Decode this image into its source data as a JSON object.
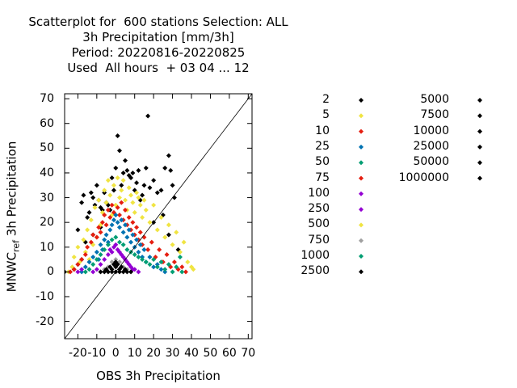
{
  "chart_data": {
    "type": "scatter",
    "title_lines": [
      "Scatterplot for  600 stations Selection: ALL",
      "3h Precipitation [mm/3h]",
      "Period: 20220816-20220825",
      "Used  All hours  + 03 04 ... 12"
    ],
    "xlabel": "OBS 3h Precipitation",
    "ylabel_main": "MNWC",
    "ylabel_sub": "ref",
    "ylabel_tail": " 3h Precipitation",
    "xlim": [
      -27,
      72
    ],
    "ylim": [
      -27,
      72
    ],
    "x_ticks": [
      "-20",
      "-10",
      "0",
      "10",
      "20",
      "30",
      "40",
      "50",
      "60",
      "70"
    ],
    "x_tick_values": [
      -20,
      -10,
      0,
      10,
      20,
      30,
      40,
      50,
      60,
      70
    ],
    "y_ticks": [
      "70",
      "60",
      "50",
      "40",
      "30",
      "20",
      "10",
      "0",
      "-10",
      "-20"
    ],
    "y_tick_values": [
      70,
      60,
      50,
      40,
      30,
      20,
      10,
      0,
      -10,
      -20
    ],
    "diagonal": true,
    "legend": [
      {
        "label": "2",
        "color": "#000000"
      },
      {
        "label": "5",
        "color": "#f0e442"
      },
      {
        "label": "10",
        "color": "#e51e10"
      },
      {
        "label": "25",
        "color": "#0072b2"
      },
      {
        "label": "50",
        "color": "#009e73"
      },
      {
        "label": "75",
        "color": "#e51e10"
      },
      {
        "label": "100",
        "color": "#9400d3"
      },
      {
        "label": "250",
        "color": "#9400d3"
      },
      {
        "label": "500",
        "color": "#f0e442"
      },
      {
        "label": "750",
        "color": "#a0a0a0"
      },
      {
        "label": "1000",
        "color": "#009e73"
      },
      {
        "label": "2500",
        "color": "#000000"
      },
      {
        "label": "5000",
        "color": "#000000"
      },
      {
        "label": "7500",
        "color": "#000000"
      },
      {
        "label": "10000",
        "color": "#000000"
      },
      {
        "label": "25000",
        "color": "#000000"
      },
      {
        "label": "50000",
        "color": "#000000"
      },
      {
        "label": "1000000",
        "color": "#000000"
      }
    ],
    "series": [
      {
        "name": "2",
        "color": "#000000",
        "points": [
          [
            -27,
            0
          ],
          [
            -22,
            1
          ],
          [
            -20,
            17
          ],
          [
            -18,
            28
          ],
          [
            -17,
            31
          ],
          [
            -15,
            22
          ],
          [
            -14,
            24
          ],
          [
            -13,
            32
          ],
          [
            -12,
            30
          ],
          [
            -11,
            27
          ],
          [
            -10,
            35
          ],
          [
            -9,
            29
          ],
          [
            -8,
            26
          ],
          [
            -7,
            25
          ],
          [
            -6,
            32
          ],
          [
            -5,
            28
          ],
          [
            -4,
            27
          ],
          [
            -3,
            25
          ],
          [
            -2,
            38
          ],
          [
            -1,
            33
          ],
          [
            0,
            42
          ],
          [
            1,
            55
          ],
          [
            2,
            49
          ],
          [
            3,
            35
          ],
          [
            4,
            40
          ],
          [
            5,
            45
          ],
          [
            6,
            41
          ],
          [
            7,
            39
          ],
          [
            8,
            38
          ],
          [
            9,
            40
          ],
          [
            10,
            33
          ],
          [
            11,
            36
          ],
          [
            12,
            41
          ],
          [
            13,
            29
          ],
          [
            14,
            31
          ],
          [
            15,
            35
          ],
          [
            16,
            42
          ],
          [
            17,
            63
          ],
          [
            18,
            34
          ],
          [
            20,
            37
          ],
          [
            22,
            32
          ],
          [
            24,
            33
          ],
          [
            26,
            42
          ],
          [
            28,
            47
          ],
          [
            29,
            41
          ],
          [
            30,
            35
          ],
          [
            31,
            30
          ],
          [
            20,
            20
          ],
          [
            -12,
            15
          ],
          [
            -16,
            12
          ],
          [
            -8,
            18
          ],
          [
            25,
            23
          ],
          [
            28,
            15
          ],
          [
            33,
            9
          ],
          [
            -18,
            5
          ],
          [
            -20,
            3
          ]
        ]
      },
      {
        "name": "5",
        "color": "#f0e442",
        "points": [
          [
            -25,
            0
          ],
          [
            -23,
            2
          ],
          [
            -22,
            6
          ],
          [
            -20,
            10
          ],
          [
            -19,
            4
          ],
          [
            -17,
            13
          ],
          [
            -16,
            8
          ],
          [
            -15,
            17
          ],
          [
            -14,
            5
          ],
          [
            -13,
            21
          ],
          [
            -12,
            11
          ],
          [
            -11,
            26
          ],
          [
            -10,
            14
          ],
          [
            -9,
            29
          ],
          [
            -8,
            19
          ],
          [
            -7,
            24
          ],
          [
            -6,
            33
          ],
          [
            -5,
            28
          ],
          [
            -4,
            37
          ],
          [
            -3,
            31
          ],
          [
            -2,
            23
          ],
          [
            -1,
            35
          ],
          [
            0,
            27
          ],
          [
            1,
            38
          ],
          [
            2,
            30
          ],
          [
            3,
            33
          ],
          [
            4,
            37
          ],
          [
            5,
            29
          ],
          [
            6,
            25
          ],
          [
            7,
            34
          ],
          [
            8,
            31
          ],
          [
            9,
            28
          ],
          [
            10,
            24
          ],
          [
            11,
            32
          ],
          [
            12,
            30
          ],
          [
            13,
            27
          ],
          [
            14,
            22
          ],
          [
            15,
            29
          ],
          [
            16,
            25
          ],
          [
            18,
            20
          ],
          [
            20,
            27
          ],
          [
            22,
            17
          ],
          [
            24,
            22
          ],
          [
            26,
            14
          ],
          [
            28,
            19
          ],
          [
            30,
            11
          ],
          [
            32,
            16
          ],
          [
            34,
            8
          ],
          [
            36,
            12
          ],
          [
            38,
            4
          ],
          [
            40,
            2
          ],
          [
            41,
            1
          ]
        ]
      },
      {
        "name": "10",
        "color": "#e51e10",
        "points": [
          [
            -24,
            0
          ],
          [
            -22,
            1
          ],
          [
            -20,
            3
          ],
          [
            -18,
            5
          ],
          [
            -16,
            7
          ],
          [
            -15,
            10
          ],
          [
            -13,
            12
          ],
          [
            -12,
            15
          ],
          [
            -10,
            14
          ],
          [
            -9,
            18
          ],
          [
            -8,
            16
          ],
          [
            -7,
            20
          ],
          [
            -6,
            23
          ],
          [
            -5,
            19
          ],
          [
            -4,
            25
          ],
          [
            -3,
            22
          ],
          [
            -2,
            27
          ],
          [
            -1,
            24
          ],
          [
            1,
            26
          ],
          [
            2,
            23
          ],
          [
            3,
            28
          ],
          [
            4,
            21
          ],
          [
            5,
            25
          ],
          [
            6,
            19
          ],
          [
            7,
            22
          ],
          [
            8,
            17
          ],
          [
            9,
            20
          ],
          [
            10,
            15
          ],
          [
            11,
            18
          ],
          [
            12,
            13
          ],
          [
            13,
            16
          ],
          [
            14,
            11
          ],
          [
            15,
            14
          ],
          [
            17,
            9
          ],
          [
            19,
            12
          ],
          [
            21,
            6
          ],
          [
            23,
            9
          ],
          [
            25,
            4
          ],
          [
            27,
            7
          ],
          [
            29,
            2
          ],
          [
            31,
            4
          ],
          [
            33,
            1
          ],
          [
            35,
            2
          ],
          [
            37,
            0
          ]
        ]
      },
      {
        "name": "25",
        "color": "#0072b2",
        "points": [
          [
            -18,
            0
          ],
          [
            -16,
            2
          ],
          [
            -14,
            4
          ],
          [
            -12,
            6
          ],
          [
            -10,
            8
          ],
          [
            -9,
            5
          ],
          [
            -8,
            11
          ],
          [
            -7,
            9
          ],
          [
            -6,
            13
          ],
          [
            -5,
            15
          ],
          [
            -4,
            12
          ],
          [
            -3,
            17
          ],
          [
            -2,
            19
          ],
          [
            -1,
            21
          ],
          [
            0,
            23
          ],
          [
            1,
            20
          ],
          [
            2,
            18
          ],
          [
            3,
            21
          ],
          [
            4,
            16
          ],
          [
            5,
            19
          ],
          [
            6,
            14
          ],
          [
            7,
            17
          ],
          [
            8,
            12
          ],
          [
            9,
            15
          ],
          [
            10,
            10
          ],
          [
            11,
            13
          ],
          [
            12,
            8
          ],
          [
            13,
            11
          ],
          [
            14,
            6
          ],
          [
            15,
            9
          ],
          [
            16,
            4
          ],
          [
            18,
            6
          ],
          [
            20,
            2
          ],
          [
            22,
            3
          ],
          [
            24,
            1
          ],
          [
            26,
            0
          ]
        ]
      },
      {
        "name": "50",
        "color": "#009e73",
        "points": [
          [
            -16,
            0
          ],
          [
            -14,
            1
          ],
          [
            -12,
            3
          ],
          [
            -10,
            5
          ],
          [
            -8,
            7
          ],
          [
            -6,
            9
          ],
          [
            -4,
            11
          ],
          [
            -2,
            13
          ],
          [
            0,
            14
          ],
          [
            2,
            12
          ],
          [
            4,
            11
          ],
          [
            6,
            9
          ],
          [
            8,
            8
          ],
          [
            10,
            7
          ],
          [
            12,
            6
          ],
          [
            14,
            5
          ],
          [
            16,
            4
          ],
          [
            18,
            3
          ],
          [
            20,
            5
          ],
          [
            22,
            2
          ],
          [
            24,
            4
          ],
          [
            26,
            1
          ],
          [
            28,
            3
          ],
          [
            30,
            0
          ],
          [
            32,
            2
          ],
          [
            34,
            6
          ],
          [
            35,
            0
          ]
        ]
      },
      {
        "name": "100",
        "color": "#9400d3",
        "points": [
          [
            -20,
            0
          ],
          [
            -18,
            1
          ],
          [
            -10,
            1
          ],
          [
            -8,
            3
          ],
          [
            -6,
            5
          ],
          [
            -4,
            7
          ],
          [
            -3,
            9
          ],
          [
            -2,
            8
          ],
          [
            -1,
            10
          ],
          [
            0,
            11
          ],
          [
            1,
            9
          ],
          [
            2,
            8
          ],
          [
            3,
            7
          ],
          [
            4,
            6
          ],
          [
            5,
            5
          ],
          [
            6,
            4
          ],
          [
            7,
            3
          ],
          [
            8,
            2
          ],
          [
            9,
            1
          ],
          [
            10,
            1
          ],
          [
            12,
            0
          ],
          [
            -12,
            0
          ]
        ]
      },
      {
        "name": "750",
        "color": "#a0a0a0",
        "points": [
          [
            -4,
            2
          ],
          [
            -2,
            4
          ],
          [
            0,
            5
          ],
          [
            2,
            4
          ],
          [
            4,
            2
          ],
          [
            -6,
            1
          ],
          [
            6,
            1
          ]
        ]
      },
      {
        "name": "2500",
        "color": "#000000",
        "points": [
          [
            -8,
            0
          ],
          [
            -6,
            0
          ],
          [
            -4,
            0
          ],
          [
            -2,
            0
          ],
          [
            0,
            0
          ],
          [
            2,
            0
          ],
          [
            4,
            0
          ],
          [
            6,
            0
          ],
          [
            8,
            0
          ],
          [
            -5,
            1
          ],
          [
            -3,
            2
          ],
          [
            -1,
            3
          ],
          [
            0,
            4
          ],
          [
            1,
            3
          ],
          [
            3,
            2
          ],
          [
            5,
            1
          ],
          [
            -2,
            1
          ],
          [
            2,
            1
          ],
          [
            0,
            2
          ]
        ]
      }
    ]
  }
}
